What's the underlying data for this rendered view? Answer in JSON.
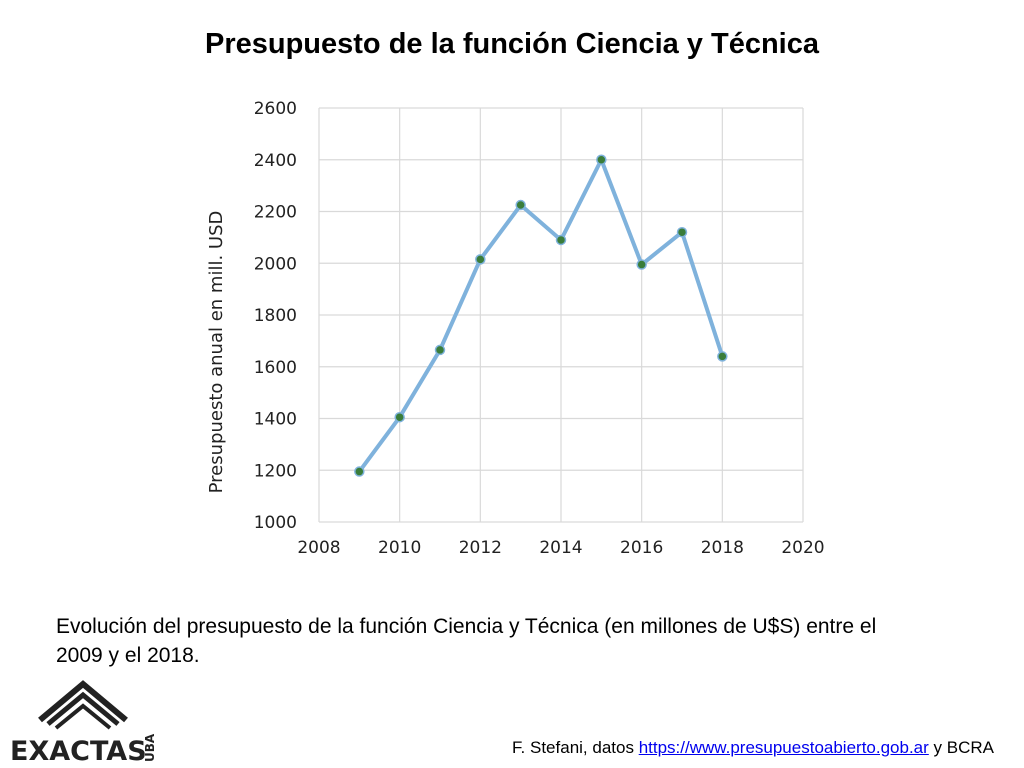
{
  "title": "Presupuesto de la función Ciencia y Técnica",
  "caption": "Evolución del presupuesto de la función Ciencia y Técnica (en millones de U$S) entre el 2009 y el 2018.",
  "footer": {
    "prefix": "F. Stefani, datos ",
    "link": "https://www.presupuestoabierto.gob.ar",
    "suffix": " y BCRA"
  },
  "logo": {
    "text": "EXACTAS",
    "sub": "UBA"
  },
  "colors": {
    "line": "#7fb2dc",
    "marker": "#3a7d3a",
    "grid": "#d9d9d9"
  },
  "chart_data": {
    "type": "line",
    "x": [
      2009,
      2010,
      2011,
      2012,
      2013,
      2014,
      2015,
      2016,
      2017,
      2018
    ],
    "series": [
      {
        "values": [
          1195,
          1405,
          1665,
          2015,
          2225,
          2090,
          2400,
          1995,
          2120,
          1640
        ]
      }
    ],
    "ylabel": "Presupuesto anual en mill. USD",
    "xlim": [
      2008,
      2020
    ],
    "ylim": [
      1000,
      2600
    ],
    "xticks": [
      "2008",
      "2010",
      "2012",
      "2014",
      "2016",
      "2018",
      "2020"
    ],
    "yticks": [
      "1000",
      "1200",
      "1400",
      "1600",
      "1800",
      "2000",
      "2200",
      "2400",
      "2600"
    ],
    "grid": true
  }
}
